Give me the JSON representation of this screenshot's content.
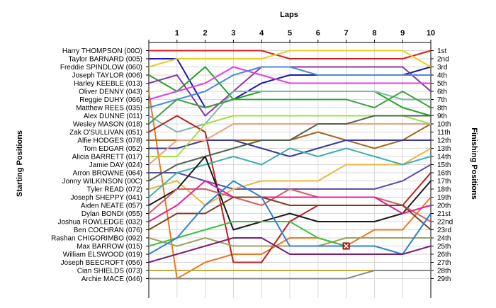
{
  "chart_data": {
    "type": "line",
    "title": "Laps",
    "xlabel": "Laps",
    "ylabel_left": "Starting Positions",
    "ylabel_right": "Finishing Positions",
    "x": [
      0,
      1,
      2,
      3,
      4,
      5,
      6,
      7,
      8,
      9,
      10
    ],
    "x_tick_labels": [
      "1",
      "2",
      "3",
      "4",
      "5",
      "6",
      "7",
      "8",
      "9",
      "10"
    ],
    "ylim": [
      1,
      29
    ],
    "y_inverted": true,
    "grid": true,
    "finish_labels": [
      "1st",
      "2nd",
      "3rd",
      "4th",
      "5th",
      "6th",
      "7th",
      "8th",
      "9th",
      "10th",
      "11th",
      "12th",
      "13th",
      "14th",
      "15th",
      "16th",
      "17th",
      "18th",
      "19th",
      "20th",
      "21st",
      "22nd",
      "23rd",
      "24th",
      "25th",
      "26th",
      "27th",
      "28th",
      "29th"
    ],
    "retired_marker": {
      "series": "Max BARROW (015)",
      "lap": 7,
      "position": 25
    },
    "series": [
      {
        "name": "Harry THOMPSON (00O)",
        "color": "#d42020",
        "positions": [
          1,
          1,
          1,
          1,
          1,
          2,
          2,
          2,
          2,
          2,
          1
        ]
      },
      {
        "name": "Taylor BARNARD (005)",
        "color": "#1a1ab0",
        "positions": [
          2,
          2,
          8,
          7,
          5,
          4,
          4,
          4,
          4,
          4,
          3
        ]
      },
      {
        "name": "Freddie SPINDLOW (060)",
        "color": "#e8d020",
        "positions": [
          3,
          2,
          2,
          2,
          2,
          1,
          1,
          1,
          1,
          1,
          3
        ]
      },
      {
        "name": "Joseph TAYLOR (006)",
        "color": "#2aa02a",
        "positions": [
          4,
          6,
          3,
          7,
          6,
          6,
          6,
          6,
          6,
          8,
          9
        ]
      },
      {
        "name": "Harley KEEBLE (013)",
        "color": "#8a3aa0",
        "positions": [
          5,
          4,
          9,
          6,
          3,
          3,
          3,
          3,
          3,
          3,
          6
        ]
      },
      {
        "name": "Oliver DENNY (043)",
        "color": "#e87a20",
        "positions": [
          6,
          29,
          27,
          26,
          26,
          24,
          24,
          25,
          23,
          23,
          19
        ]
      },
      {
        "name": "Reggie DUHY (066)",
        "color": "#e040e0",
        "positions": [
          7,
          6,
          5,
          3,
          4,
          5,
          5,
          5,
          5,
          5,
          5
        ]
      },
      {
        "name": "Matthew REES (035)",
        "color": "#4a8ad8",
        "positions": [
          8,
          7,
          6,
          4,
          3,
          3,
          4,
          4,
          4,
          4,
          4
        ]
      },
      {
        "name": "Alex DUNNE (011)",
        "color": "#7ab8a8",
        "positions": [
          9,
          11,
          10,
          6,
          6,
          6,
          6,
          6,
          6,
          7,
          7
        ]
      },
      {
        "name": "Wesley MASON (018)",
        "color": "#40a040",
        "positions": [
          10,
          7,
          8,
          7,
          7,
          7,
          7,
          7,
          8,
          6,
          8
        ]
      },
      {
        "name": "Zak O'SULLIVAN (051)",
        "color": "#c02020",
        "positions": [
          11,
          9,
          11,
          27,
          27,
          22,
          20,
          20,
          20,
          20,
          16
        ]
      },
      {
        "name": "Alfie HODGES (078)",
        "color": "#a06820",
        "positions": [
          12,
          12,
          12,
          12,
          12,
          12,
          11,
          12,
          13,
          12,
          10
        ]
      },
      {
        "name": "Tom EDGAR (052)",
        "color": "#3a3a9a",
        "positions": [
          13,
          13,
          12,
          12,
          13,
          14,
          13,
          12,
          12,
          12,
          12
        ]
      },
      {
        "name": "Alicia BARRETT (017)",
        "color": "#a0e040",
        "positions": [
          14,
          14,
          10,
          9,
          9,
          9,
          9,
          9,
          9,
          9,
          10
        ]
      },
      {
        "name": "Jamie DAY (024)",
        "color": "#e8a080",
        "positions": [
          15,
          12,
          12,
          10,
          10,
          10,
          10,
          10,
          10,
          10,
          10
        ]
      },
      {
        "name": "Arron BROWNE (064)",
        "color": "#6050a0",
        "positions": [
          16,
          16,
          17,
          18,
          18,
          18,
          18,
          18,
          18,
          17,
          15
        ]
      },
      {
        "name": "Jonny WILKINSON (00C)",
        "color": "#506050",
        "positions": [
          17,
          15,
          14,
          13,
          12,
          12,
          10,
          10,
          9,
          9,
          9
        ]
      },
      {
        "name": "Tyler READ (072)",
        "color": "#e8b840",
        "positions": [
          18,
          17,
          20,
          18,
          17,
          17,
          17,
          15,
          15,
          15,
          13
        ]
      },
      {
        "name": "Joseph SHEPPY (041)",
        "color": "#40b0b0",
        "positions": [
          19,
          16,
          15,
          14,
          15,
          13,
          14,
          13,
          14,
          15,
          14
        ]
      },
      {
        "name": "Aiden NEATE (057)",
        "color": "#1a1a1a",
        "positions": [
          20,
          18,
          14,
          23,
          22,
          21,
          22,
          22,
          22,
          21,
          17
        ]
      },
      {
        "name": "Dylan BONDI (055)",
        "color": "#d06060",
        "positions": [
          21,
          18,
          18,
          19,
          20,
          18,
          19,
          19,
          19,
          20,
          22
        ]
      },
      {
        "name": "Joshua ROWLEDGE (032)",
        "color": "#e020a0",
        "positions": [
          22,
          20,
          17,
          19,
          19,
          19,
          19,
          19,
          19,
          21,
          20
        ]
      },
      {
        "name": "Ben COCHRAN (076)",
        "color": "#804020",
        "positions": [
          23,
          21,
          21,
          19,
          19,
          20,
          20,
          20,
          20,
          20,
          23
        ]
      },
      {
        "name": "Rashan CHIGORIMBO (092)",
        "color": "#a0a060",
        "positions": [
          24,
          25,
          24,
          25,
          25,
          25,
          25,
          24,
          24,
          24,
          24
        ]
      },
      {
        "name": "Max BARROW (015)",
        "color": "#40c040",
        "positions": [
          25,
          24,
          23,
          22,
          22,
          22,
          24,
          25
        ]
      },
      {
        "name": "William ELSWOOD (019)",
        "color": "#3080d0",
        "positions": [
          26,
          24,
          20,
          17,
          19,
          25,
          25,
          25,
          25,
          26,
          21
        ]
      },
      {
        "name": "Joseph BEECROFT (056)",
        "color": "#7a2070",
        "positions": [
          27,
          26,
          25,
          24,
          24,
          26,
          26,
          26,
          26,
          26,
          25
        ]
      },
      {
        "name": "Cian SHIELDS (073)",
        "color": "#c8a840",
        "positions": [
          28,
          28,
          28,
          28,
          28,
          28,
          28,
          28,
          28,
          28,
          28
        ]
      },
      {
        "name": "Archie MACE (046)",
        "color": "#888888",
        "positions": [
          29,
          29,
          29,
          29,
          29,
          29,
          29,
          29,
          28,
          28,
          28
        ]
      }
    ]
  }
}
